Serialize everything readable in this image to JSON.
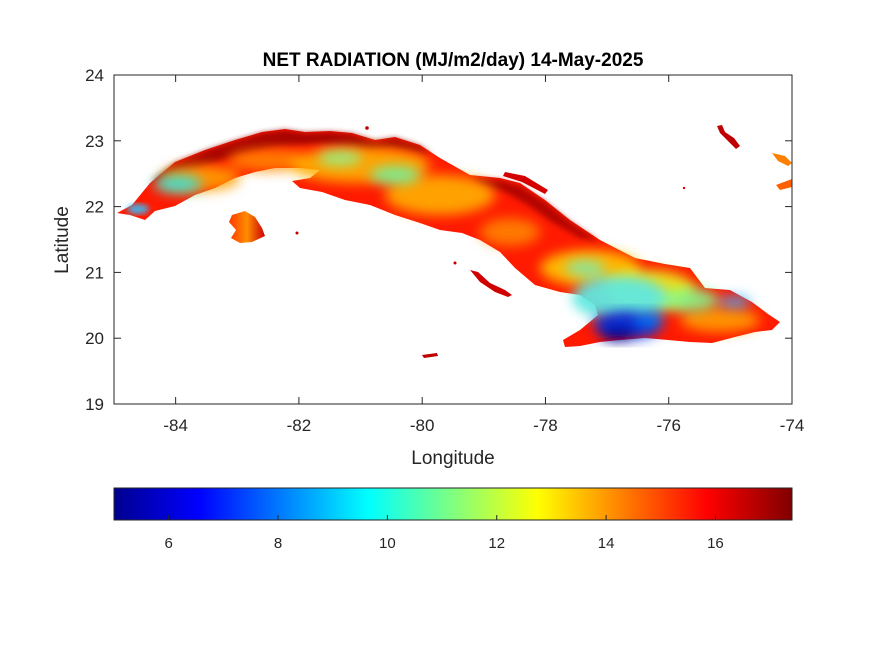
{
  "chart_data": {
    "type": "heatmap",
    "title": "NET RADIATION (MJ/m2/day) 14-May-2025",
    "xlabel": "Longitude",
    "ylabel": "Latitude",
    "xlim": [
      -85,
      -74
    ],
    "ylim": [
      19,
      24
    ],
    "xticks": [
      -84,
      -82,
      -80,
      -78,
      -76,
      -74
    ],
    "yticks": [
      19,
      20,
      21,
      22,
      23,
      24
    ],
    "colorbar": {
      "colormap": "jet",
      "orientation": "horizontal",
      "placement": "below",
      "range": [
        5,
        17.4
      ],
      "ticks": [
        6,
        8,
        10,
        12,
        14,
        16
      ]
    },
    "grid": false,
    "colors": [
      "#00008f",
      "#0000ff",
      "#00ffff",
      "#ffff00",
      "#ff0000",
      "#800000"
    ]
  }
}
